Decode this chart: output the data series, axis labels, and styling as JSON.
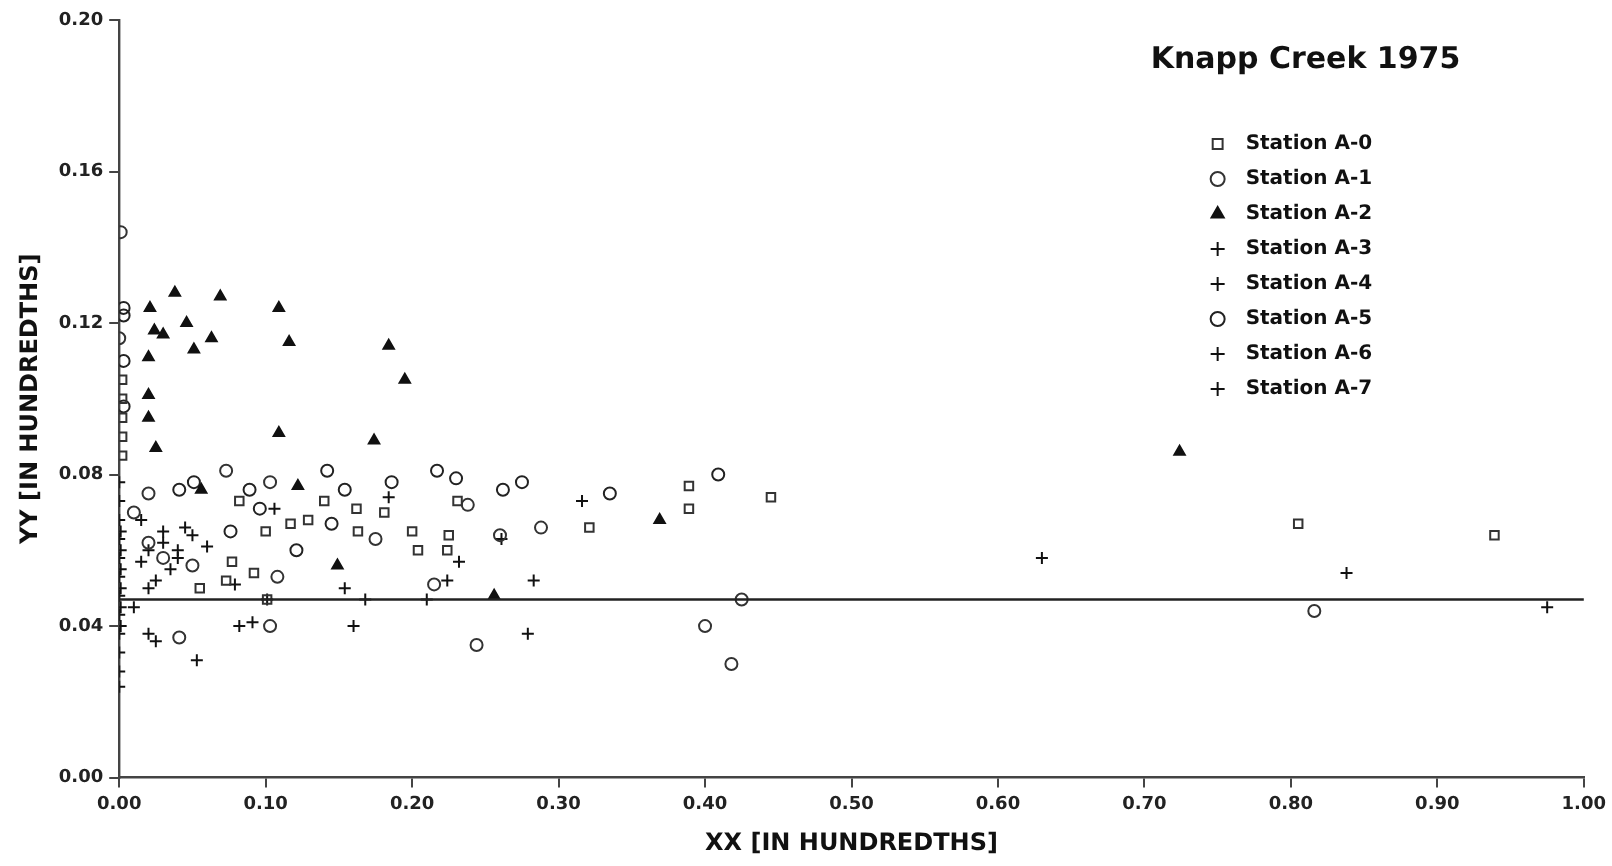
{
  "chart_data": {
    "type": "scatter",
    "title": "Knapp Creek 1975",
    "xlabel": "XX [IN HUNDREDTHS]",
    "ylabel": "YY [IN HUNDREDTHS]",
    "xlim": [
      0,
      1
    ],
    "ylim": [
      0,
      0.2
    ],
    "xticks": [
      {
        "value": 0,
        "label": "0.00"
      },
      {
        "value": 0.1,
        "label": "0.10"
      },
      {
        "value": 0.2,
        "label": "0.20"
      },
      {
        "value": 0.3,
        "label": "0.30"
      },
      {
        "value": 0.4,
        "label": "0.40"
      },
      {
        "value": 0.5,
        "label": "0.50"
      },
      {
        "value": 0.6,
        "label": "0.60"
      },
      {
        "value": 0.7,
        "label": "0.70"
      },
      {
        "value": 0.8,
        "label": "0.80"
      },
      {
        "value": 0.9,
        "label": "0.90"
      },
      {
        "value": 1,
        "label": "1.00"
      }
    ],
    "yticks": [
      {
        "value": 0,
        "label": "0.00"
      },
      {
        "value": 0.04,
        "label": "0.04"
      },
      {
        "value": 0.08,
        "label": "0.08"
      },
      {
        "value": 0.12,
        "label": "0.12"
      },
      {
        "value": 0.16,
        "label": "0.16"
      },
      {
        "value": 0.2,
        "label": "0.20"
      }
    ],
    "grid": false,
    "legend": "top right",
    "ref_lines": [
      {
        "axis": "y",
        "value": 0.047,
        "color": "#222222"
      }
    ],
    "series": [
      {
        "name": "Station A-0",
        "color": "#333333",
        "marker": "square",
        "x": [
          0.389,
          0.389,
          0.445,
          0.321,
          0.082,
          0.1,
          0.092,
          0.073,
          0.055,
          0.101,
          0.117,
          0.129,
          0.14,
          0.162,
          0.181,
          0.163,
          0.2,
          0.204,
          0.225,
          0.224,
          0.231,
          0.077,
          0.805,
          0.939,
          0.002,
          0.002,
          0.002,
          0.002,
          0.002
        ],
        "values": [
          0.077,
          0.071,
          0.074,
          0.066,
          0.073,
          0.065,
          0.054,
          0.052,
          0.05,
          0.047,
          0.067,
          0.068,
          0.073,
          0.071,
          0.07,
          0.065,
          0.065,
          0.06,
          0.064,
          0.06,
          0.073,
          0.057,
          0.067,
          0.064,
          0.085,
          0.09,
          0.095,
          0.1,
          0.105
        ]
      },
      {
        "name": "Station A-1",
        "color": "#333333",
        "marker": "circle",
        "x": [
          0.001,
          0.0,
          0.073,
          0.103,
          0.103,
          0.041,
          0.244,
          0.4,
          0.418,
          0.425,
          0.26,
          0.288,
          0.238,
          0.215,
          0.175,
          0.108,
          0.816,
          0.02,
          0.01,
          0.02,
          0.03,
          0.05
        ],
        "values": [
          0.144,
          0.116,
          0.081,
          0.078,
          0.04,
          0.037,
          0.035,
          0.04,
          0.03,
          0.047,
          0.064,
          0.066,
          0.072,
          0.051,
          0.063,
          0.053,
          0.044,
          0.075,
          0.07,
          0.062,
          0.058,
          0.056
        ]
      },
      {
        "name": "Station A-2",
        "color": "#111111",
        "marker": "triangle",
        "x": [
          0.038,
          0.069,
          0.109,
          0.021,
          0.046,
          0.024,
          0.03,
          0.063,
          0.051,
          0.116,
          0.184,
          0.195,
          0.02,
          0.02,
          0.02,
          0.025,
          0.109,
          0.174,
          0.122,
          0.056,
          0.149,
          0.369,
          0.256,
          0.724
        ],
        "values": [
          0.128,
          0.127,
          0.124,
          0.124,
          0.12,
          0.118,
          0.117,
          0.116,
          0.113,
          0.115,
          0.114,
          0.105,
          0.111,
          0.101,
          0.095,
          0.087,
          0.091,
          0.089,
          0.077,
          0.076,
          0.056,
          0.068,
          0.048,
          0.086
        ]
      },
      {
        "name": "Station A-3",
        "color": "#111111",
        "marker": "cross",
        "x": [
          0.154,
          0.053,
          0.316,
          0.184,
          0.232,
          0.106,
          0.63,
          0.02,
          0.001,
          0.001,
          0.001,
          0.001,
          0.001,
          0.001
        ],
        "values": [
          0.05,
          0.031,
          0.073,
          0.074,
          0.057,
          0.071,
          0.058,
          0.038,
          0.04,
          0.045,
          0.05,
          0.055,
          0.06,
          0.065
        ]
      },
      {
        "name": "Station A-4",
        "color": "#111111",
        "marker": "cross",
        "x": [
          0.224,
          0.283,
          0.261,
          0.079,
          0.025,
          0.838,
          0.01,
          0.02,
          0.03,
          0.015,
          0.04
        ],
        "values": [
          0.052,
          0.052,
          0.063,
          0.051,
          0.036,
          0.054,
          0.045,
          0.05,
          0.065,
          0.068,
          0.06
        ]
      },
      {
        "name": "Station A-5",
        "color": "#222222",
        "marker": "circle",
        "x": [
          0.217,
          0.23,
          0.262,
          0.275,
          0.335,
          0.409,
          0.142,
          0.154,
          0.145,
          0.096,
          0.089,
          0.041,
          0.051,
          0.186,
          0.121,
          0.076,
          0.003,
          0.003,
          0.003,
          0.003
        ],
        "values": [
          0.081,
          0.079,
          0.076,
          0.078,
          0.075,
          0.08,
          0.081,
          0.076,
          0.067,
          0.071,
          0.076,
          0.076,
          0.078,
          0.078,
          0.06,
          0.065,
          0.122,
          0.124,
          0.11,
          0.098
        ]
      },
      {
        "name": "Station A-6",
        "color": "#111111",
        "marker": "cross",
        "x": [
          0.082,
          0.091,
          0.16,
          0.279,
          0.21,
          0.168,
          0.101,
          0.02,
          0.03,
          0.04,
          0.05,
          0.06,
          0.035,
          0.025,
          0.045,
          0.015
        ],
        "values": [
          0.04,
          0.041,
          0.04,
          0.038,
          0.047,
          0.047,
          0.047,
          0.06,
          0.062,
          0.058,
          0.064,
          0.061,
          0.055,
          0.052,
          0.066,
          0.057
        ]
      },
      {
        "name": "Station A-7",
        "color": "#111111",
        "marker": "cross",
        "x": [
          0.975,
          0,
          0,
          0,
          0,
          0,
          0,
          0,
          0,
          0,
          0,
          0,
          0
        ],
        "values": [
          0.045,
          0.024,
          0.028,
          0.033,
          0.038,
          0.043,
          0.048,
          0.053,
          0.058,
          0.063,
          0.068,
          0.073,
          0.078
        ]
      }
    ]
  }
}
